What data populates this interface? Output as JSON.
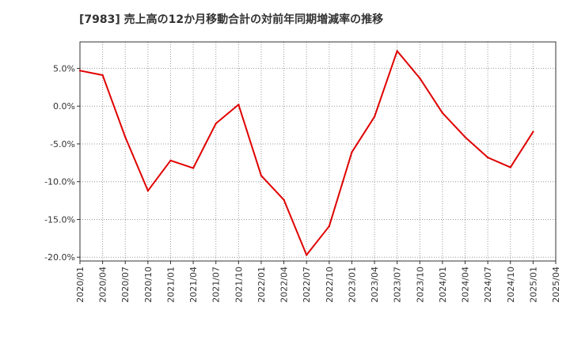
{
  "chart_data": {
    "type": "line",
    "title": "[7983]  売上高の12か月移動合計の対前年同期増減率の推移",
    "xlabel": "",
    "ylabel": "",
    "x": [
      "2020/01",
      "2020/04",
      "2020/07",
      "2020/10",
      "2021/01",
      "2021/04",
      "2021/07",
      "2021/10",
      "2022/01",
      "2022/04",
      "2022/07",
      "2022/10",
      "2023/01",
      "2023/04",
      "2023/07",
      "2023/10",
      "2024/01",
      "2024/04",
      "2024/07",
      "2024/10",
      "2025/01"
    ],
    "x_ticks": [
      "2020/01",
      "2020/04",
      "2020/07",
      "2020/10",
      "2021/01",
      "2021/04",
      "2021/07",
      "2021/10",
      "2022/01",
      "2022/04",
      "2022/07",
      "2022/10",
      "2023/01",
      "2023/04",
      "2023/07",
      "2023/10",
      "2024/01",
      "2024/04",
      "2024/07",
      "2024/10",
      "2025/01",
      "2025/04"
    ],
    "y_ticks": [
      5,
      0,
      -5,
      -10,
      -15,
      -20
    ],
    "y_tick_labels": [
      "5.0%",
      "0.0%",
      "-5.0%",
      "-10.0%",
      "-15.0%",
      "-20.0%"
    ],
    "ylim": [
      -20.5,
      8.5
    ],
    "series": [
      {
        "name": "対前年同期増減率",
        "color": "#e00000",
        "values": [
          4.7,
          4.1,
          -4.1,
          -11.2,
          -7.2,
          -8.2,
          -2.3,
          0.2,
          -9.2,
          -12.4,
          -19.7,
          -15.9,
          -6.1,
          -1.4,
          7.3,
          3.7,
          -0.9,
          -4.1,
          -6.8,
          -8.1,
          -3.4
        ]
      }
    ]
  }
}
